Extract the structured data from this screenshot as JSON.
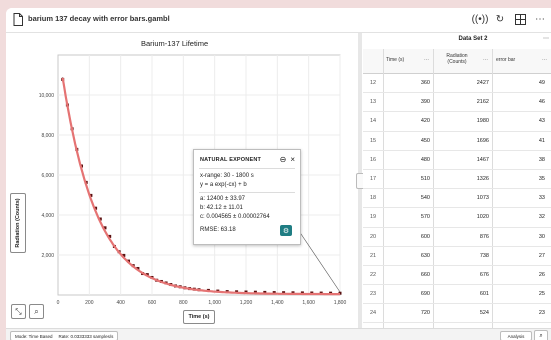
{
  "window": {
    "title": "barium 137 decay with error bars.gambl",
    "toolbar_icons": [
      "broadcast-icon",
      "refresh-icon",
      "layout-icon",
      "more-icon"
    ]
  },
  "graph": {
    "title": "Barium-137 Lifetime",
    "ylabel_button": "Radiation (Counts)",
    "xlabel_button": "Time (s)",
    "corner_buttons": [
      "autoscale-icon",
      "zoom-icon"
    ]
  },
  "chart_data": {
    "type": "scatter",
    "title": "Barium-137 Lifetime",
    "xlabel": "Time (s)",
    "ylabel": "Radiation (Counts)",
    "xlim": [
      0,
      1800
    ],
    "ylim": [
      0,
      12000
    ],
    "x_ticks": [
      "0",
      "200",
      "400",
      "600",
      "800",
      "1,000",
      "1,200",
      "1,400",
      "1,600",
      "1,800"
    ],
    "y_ticks": [
      "2,000",
      "4,000",
      "6,000",
      "8,000",
      "10,000"
    ],
    "grid": true,
    "series": [
      {
        "name": "Radiation (Counts)",
        "x": [
          30,
          60,
          90,
          120,
          150,
          180,
          210,
          240,
          270,
          300,
          330,
          360,
          390,
          420,
          450,
          480,
          510,
          540,
          570,
          600,
          630,
          660,
          690,
          720,
          750,
          780,
          810,
          840,
          870,
          900,
          960,
          1020,
          1080,
          1140,
          1200,
          1260,
          1320,
          1380,
          1440,
          1500,
          1560,
          1620,
          1680,
          1740,
          1800
        ],
        "y": [
          10780,
          9500,
          8310,
          7280,
          6450,
          5630,
          4980,
          4340,
          3800,
          3360,
          2930,
          2427,
          2162,
          1980,
          1696,
          1467,
          1326,
          1073,
          1020,
          876,
          738,
          676,
          601,
          524,
          452,
          410,
          360,
          320,
          290,
          262,
          230,
          196,
          170,
          160,
          150,
          140,
          130,
          120,
          115,
          110,
          105,
          100,
          96,
          92,
          90
        ]
      }
    ],
    "fit": {
      "name": "Natural Exponent",
      "x_range": [
        30,
        1800
      ],
      "a": 12400,
      "b": 42.12,
      "c": 0.004565
    }
  },
  "fit_popup": {
    "title": "NATURAL EXPONENT",
    "x_range": "x-range: 30 - 1800 s",
    "equation": "y = a exp(-cx) + b",
    "a": "a: 12400 ± 33.97",
    "b": "b: 42.12 ± 11.01",
    "c": "c: 0.004565 ± 0.00002764",
    "rmse": "RMSE: 63.18"
  },
  "table": {
    "title": "Data Set 2",
    "columns": [
      {
        "label": "Time (s)"
      },
      {
        "label": "Radiation (Counts)"
      },
      {
        "label": "error bar"
      }
    ],
    "rows": [
      [
        "12",
        "360",
        "2427",
        "49"
      ],
      [
        "13",
        "390",
        "2162",
        "46"
      ],
      [
        "14",
        "420",
        "1980",
        "43"
      ],
      [
        "15",
        "450",
        "1696",
        "41"
      ],
      [
        "16",
        "480",
        "1467",
        "38"
      ],
      [
        "17",
        "510",
        "1326",
        "35"
      ],
      [
        "18",
        "540",
        "1073",
        "33"
      ],
      [
        "19",
        "570",
        "1020",
        "32"
      ],
      [
        "20",
        "600",
        "876",
        "30"
      ],
      [
        "21",
        "630",
        "738",
        "27"
      ],
      [
        "22",
        "660",
        "676",
        "26"
      ],
      [
        "23",
        "690",
        "601",
        "25"
      ],
      [
        "24",
        "720",
        "524",
        "23"
      ],
      [
        "25",
        "750",
        "452",
        "21"
      ]
    ]
  },
  "status": {
    "mode": "Mode: Time Based",
    "rate": "Rate: 0.0333333 samples/s",
    "analysis_button": "Analysis"
  },
  "colors": {
    "fit_curve": "#e57373",
    "data_points": "#5a1010",
    "accent": "#1f7d83"
  }
}
